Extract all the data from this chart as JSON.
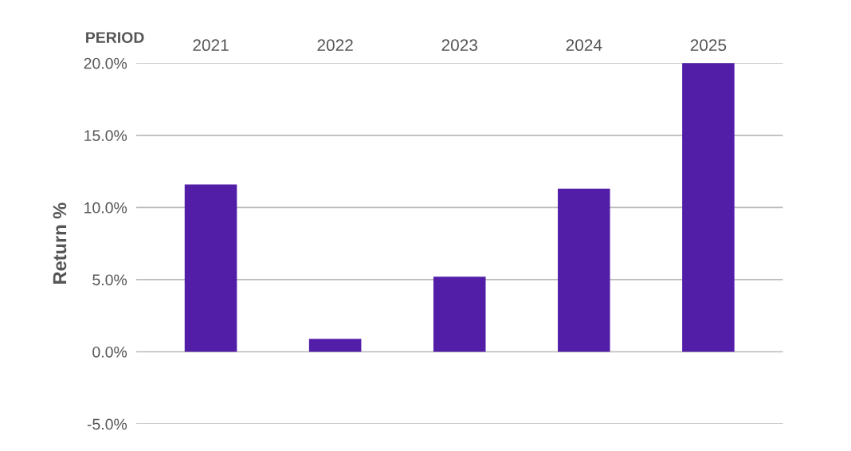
{
  "chart_data": {
    "type": "bar",
    "xlabel": "PERIOD",
    "ylabel": "Return %",
    "categories": [
      "2021",
      "2022",
      "2023",
      "2024",
      "2025"
    ],
    "values": [
      11.6,
      0.9,
      5.2,
      11.3,
      20.0
    ],
    "color": "#521ea8",
    "ylim": [
      -5,
      20
    ],
    "yticks": [
      {
        "value": -5,
        "label": "-5.0%"
      },
      {
        "value": 0,
        "label": "0.0%"
      },
      {
        "value": 5,
        "label": "5.0%"
      },
      {
        "value": 10,
        "label": "10.0%"
      },
      {
        "value": 15,
        "label": "15.0%"
      },
      {
        "value": 20,
        "label": "20.0%"
      }
    ],
    "grid": "y",
    "legend": false
  }
}
